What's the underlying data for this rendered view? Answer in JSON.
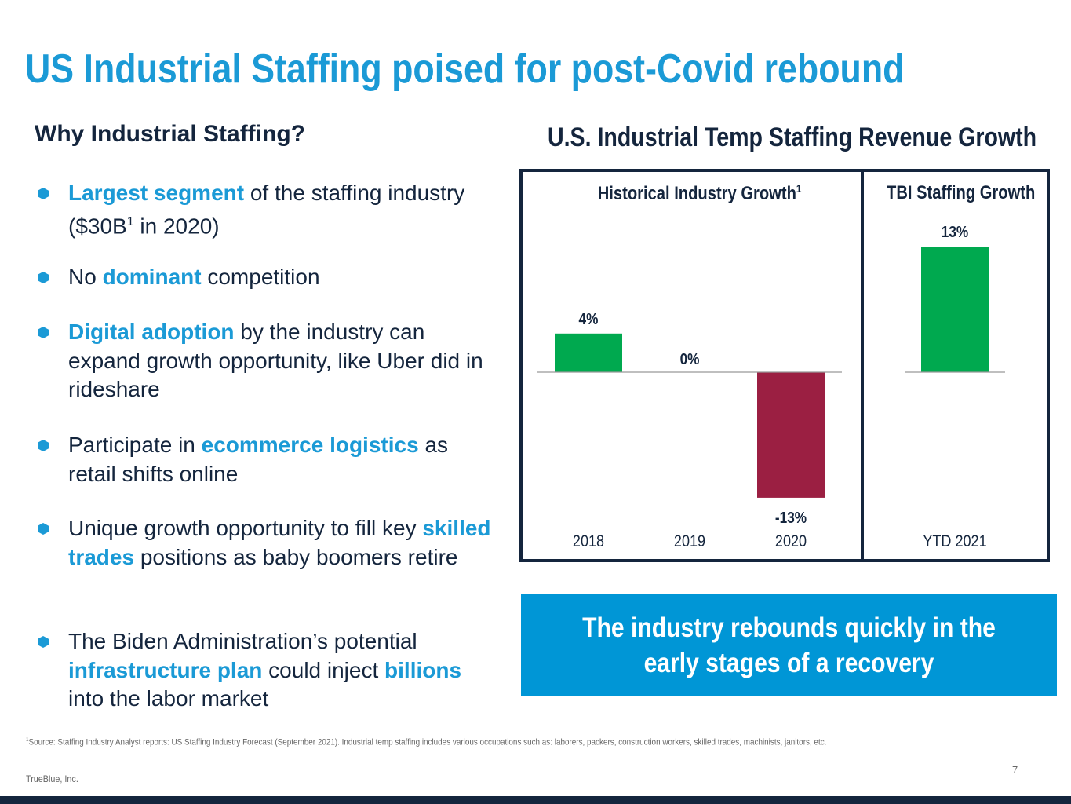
{
  "title": "US Industrial Staffing poised for post-Covid rebound",
  "left": {
    "heading": "Why Industrial Staffing?",
    "bullets": [
      {
        "parts": [
          {
            "t": "Largest segment",
            "hl": true
          },
          {
            "t": " of the staffing industry ($30B"
          },
          {
            "t": "1",
            "sup": true
          },
          {
            "t": " in 2020)"
          }
        ]
      },
      {
        "parts": [
          {
            "t": "No "
          },
          {
            "t": "dominant",
            "hl": true
          },
          {
            "t": " competition"
          }
        ]
      },
      {
        "parts": [
          {
            "t": "Digital adoption",
            "hl": true
          },
          {
            "t": " by the industry can expand growth opportunity, like Uber did in rideshare"
          }
        ]
      },
      {
        "parts": [
          {
            "t": "Participate in "
          },
          {
            "t": "ecommerce logistics",
            "hl": true
          },
          {
            "t": " as retail shifts online"
          }
        ]
      },
      {
        "parts": [
          {
            "t": "Unique growth opportunity to fill key "
          },
          {
            "t": "skilled trades",
            "hl": true
          },
          {
            "t": " positions as baby boomers retire"
          }
        ]
      },
      {
        "parts": [
          {
            "t": "The Biden Administration’s potential "
          },
          {
            "t": "infrastructure plan",
            "hl": true
          },
          {
            "t": " could inject "
          },
          {
            "t": "billions",
            "hl": true
          },
          {
            "t": " into the labor market"
          }
        ]
      }
    ]
  },
  "chart_data": {
    "type": "bar",
    "title": "U.S. Industrial Temp Staffing Revenue Growth",
    "panels": [
      {
        "subtitle": "Historical Industry Growth",
        "subtitle_sup": "1",
        "categories": [
          "2018",
          "2019",
          "2020"
        ],
        "values": [
          4,
          0,
          -13
        ],
        "labels": [
          "4%",
          "0%",
          "-13%"
        ]
      },
      {
        "subtitle": "TBI Staffing Growth",
        "categories": [
          "YTD 2021"
        ],
        "values": [
          13
        ],
        "labels": [
          "13%"
        ]
      }
    ],
    "unit": "%",
    "colors": {
      "positive": "#00a94f",
      "negative": "#9b1f42"
    }
  },
  "callout": "The industry rebounds quickly in the early stages of a recovery",
  "footnote_sup": "1",
  "footnote": "Source: Staffing Industry Analyst reports: US Staffing Industry Forecast (September 2021). Industrial temp staffing includes various occupations such as: laborers, packers, construction workers, skilled trades, machinists, janitors, etc.",
  "company": "TrueBlue, Inc.",
  "page_number": "7"
}
